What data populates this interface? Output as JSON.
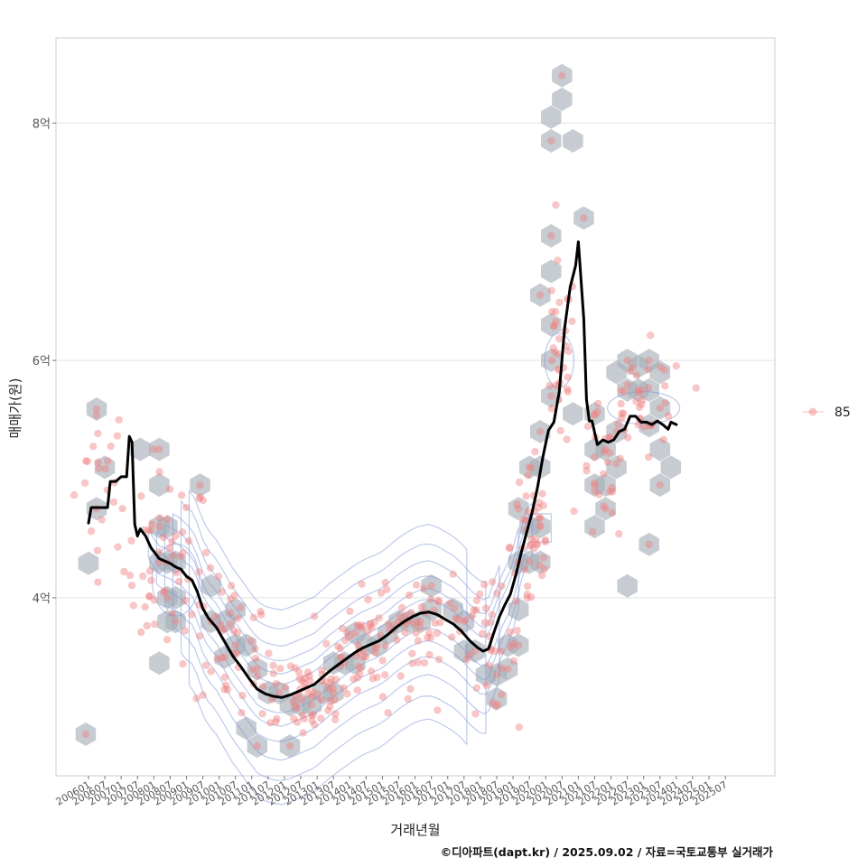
{
  "chart_data": {
    "type": "scatter",
    "xlabel": "거래년월",
    "ylabel": "매매가(원)",
    "caption": "©디아파트(dapt.kr) / 2025.09.02 / 자료=국토교통부 실거래가",
    "ylim": [
      2.5,
      8.8
    ],
    "y_ticks": [
      {
        "value": 4,
        "label": "4억"
      },
      {
        "value": 6,
        "label": "6억"
      },
      {
        "value": 8,
        "label": "8억"
      }
    ],
    "x_start": "2006-01",
    "x_end": "2025-12",
    "x_ticks": [
      "200601",
      "200607",
      "200701",
      "200707",
      "200801",
      "200807",
      "200901",
      "200907",
      "201001",
      "201007",
      "201101",
      "201107",
      "201201",
      "201207",
      "201301",
      "201307",
      "201401",
      "201407",
      "201501",
      "201507",
      "201601",
      "201607",
      "201701",
      "201707",
      "201801",
      "201807",
      "201901",
      "201907",
      "202001",
      "202007",
      "202101",
      "202107",
      "202201",
      "202207",
      "202301",
      "202307",
      "202401",
      "202407",
      "202501",
      "202507"
    ],
    "legend": {
      "label": "85",
      "color": "#f08080",
      "position": "right"
    },
    "grid": true,
    "colors": {
      "points": "#f08080",
      "hex": "#a8b0b8",
      "contour": "#7f96d8",
      "trend": "#000000"
    },
    "trend": [
      [
        "2006-01",
        4.63
      ],
      [
        "2006-02",
        4.76
      ],
      [
        "2006-04",
        4.76
      ],
      [
        "2006-08",
        4.76
      ],
      [
        "2006-09",
        4.98
      ],
      [
        "2006-11",
        4.98
      ],
      [
        "2007-01",
        5.02
      ],
      [
        "2007-03",
        5.02
      ],
      [
        "2007-04",
        5.36
      ],
      [
        "2007-05",
        5.31
      ],
      [
        "2007-06",
        4.62
      ],
      [
        "2007-07",
        4.52
      ],
      [
        "2007-08",
        4.58
      ],
      [
        "2007-10",
        4.52
      ],
      [
        "2007-12",
        4.42
      ],
      [
        "2008-03",
        4.33
      ],
      [
        "2008-05",
        4.31
      ],
      [
        "2008-07",
        4.29
      ],
      [
        "2008-09",
        4.26
      ],
      [
        "2008-11",
        4.24
      ],
      [
        "2009-01",
        4.18
      ],
      [
        "2009-03",
        4.15
      ],
      [
        "2009-05",
        4.05
      ],
      [
        "2009-07",
        3.91
      ],
      [
        "2009-09",
        3.83
      ],
      [
        "2009-12",
        3.75
      ],
      [
        "2010-03",
        3.63
      ],
      [
        "2010-06",
        3.51
      ],
      [
        "2010-09",
        3.42
      ],
      [
        "2010-12",
        3.32
      ],
      [
        "2011-03",
        3.23
      ],
      [
        "2011-06",
        3.19
      ],
      [
        "2011-09",
        3.17
      ],
      [
        "2011-12",
        3.16
      ],
      [
        "2012-03",
        3.18
      ],
      [
        "2012-06",
        3.21
      ],
      [
        "2012-09",
        3.24
      ],
      [
        "2012-12",
        3.27
      ],
      [
        "2013-03",
        3.33
      ],
      [
        "2013-06",
        3.39
      ],
      [
        "2013-09",
        3.44
      ],
      [
        "2013-12",
        3.49
      ],
      [
        "2014-03",
        3.54
      ],
      [
        "2014-06",
        3.58
      ],
      [
        "2014-09",
        3.61
      ],
      [
        "2014-12",
        3.64
      ],
      [
        "2015-03",
        3.69
      ],
      [
        "2015-06",
        3.75
      ],
      [
        "2015-09",
        3.8
      ],
      [
        "2015-12",
        3.84
      ],
      [
        "2016-03",
        3.87
      ],
      [
        "2016-06",
        3.88
      ],
      [
        "2016-09",
        3.86
      ],
      [
        "2016-12",
        3.82
      ],
      [
        "2017-03",
        3.78
      ],
      [
        "2017-06",
        3.72
      ],
      [
        "2017-09",
        3.64
      ],
      [
        "2017-12",
        3.58
      ],
      [
        "2018-02",
        3.55
      ],
      [
        "2018-04",
        3.57
      ],
      [
        "2018-06",
        3.71
      ],
      [
        "2018-08",
        3.84
      ],
      [
        "2018-10",
        3.94
      ],
      [
        "2018-12",
        4.03
      ],
      [
        "2019-02",
        4.19
      ],
      [
        "2019-04",
        4.38
      ],
      [
        "2019-06",
        4.55
      ],
      [
        "2019-08",
        4.72
      ],
      [
        "2019-10",
        4.93
      ],
      [
        "2019-12",
        5.19
      ],
      [
        "2020-02",
        5.41
      ],
      [
        "2020-04",
        5.48
      ],
      [
        "2020-06",
        5.74
      ],
      [
        "2020-08",
        6.28
      ],
      [
        "2020-10",
        6.62
      ],
      [
        "2020-12",
        6.8
      ],
      [
        "2021-01",
        7.0
      ],
      [
        "2021-03",
        6.35
      ],
      [
        "2021-04",
        5.67
      ],
      [
        "2021-05",
        5.49
      ],
      [
        "2021-06",
        5.49
      ],
      [
        "2021-08",
        5.29
      ],
      [
        "2021-10",
        5.33
      ],
      [
        "2021-12",
        5.31
      ],
      [
        "2022-02",
        5.33
      ],
      [
        "2022-04",
        5.4
      ],
      [
        "2022-06",
        5.42
      ],
      [
        "2022-08",
        5.53
      ],
      [
        "2022-10",
        5.53
      ],
      [
        "2022-12",
        5.48
      ],
      [
        "2023-02",
        5.48
      ],
      [
        "2023-04",
        5.46
      ],
      [
        "2023-06",
        5.49
      ],
      [
        "2023-08",
        5.46
      ],
      [
        "2023-10",
        5.42
      ],
      [
        "2023-11",
        5.48
      ],
      [
        "2024-01",
        5.46
      ]
    ],
    "hexbins": [
      [
        "2006-04",
        5.59
      ],
      [
        "2006-01",
        4.29
      ],
      [
        "2006-04",
        4.75
      ],
      [
        "2006-07",
        5.1
      ],
      [
        "2005-12",
        2.85
      ],
      [
        "2007-08",
        5.25
      ],
      [
        "2008-03",
        5.25
      ],
      [
        "2008-03",
        4.95
      ],
      [
        "2008-03",
        4.6
      ],
      [
        "2008-06",
        4.6
      ],
      [
        "2008-06",
        4.3
      ],
      [
        "2008-09",
        4.3
      ],
      [
        "2008-06",
        4.0
      ],
      [
        "2008-09",
        4.0
      ],
      [
        "2008-03",
        4.3
      ],
      [
        "2008-06",
        3.8
      ],
      [
        "2008-09",
        3.8
      ],
      [
        "2008-03",
        3.45
      ],
      [
        "2009-06",
        4.95
      ],
      [
        "2009-10",
        4.1
      ],
      [
        "2009-10",
        3.8
      ],
      [
        "2010-03",
        3.8
      ],
      [
        "2010-03",
        3.5
      ],
      [
        "2010-07",
        3.9
      ],
      [
        "2010-07",
        3.6
      ],
      [
        "2010-11",
        3.6
      ],
      [
        "2011-03",
        3.4
      ],
      [
        "2010-11",
        2.9
      ],
      [
        "2011-03",
        2.75
      ],
      [
        "2011-07",
        3.2
      ],
      [
        "2011-11",
        3.2
      ],
      [
        "2012-03",
        3.1
      ],
      [
        "2012-03",
        2.75
      ],
      [
        "2012-07",
        3.1
      ],
      [
        "2012-11",
        3.1
      ],
      [
        "2013-03",
        3.2
      ],
      [
        "2013-07",
        3.2
      ],
      [
        "2013-07",
        3.45
      ],
      [
        "2013-11",
        3.45
      ],
      [
        "2014-03",
        3.45
      ],
      [
        "2014-03",
        3.7
      ],
      [
        "2014-07",
        3.6
      ],
      [
        "2014-11",
        3.6
      ],
      [
        "2015-03",
        3.7
      ],
      [
        "2015-07",
        3.8
      ],
      [
        "2015-11",
        3.8
      ],
      [
        "2016-03",
        3.8
      ],
      [
        "2016-07",
        3.9
      ],
      [
        "2016-07",
        4.1
      ],
      [
        "2017-03",
        3.9
      ],
      [
        "2017-07",
        3.8
      ],
      [
        "2017-07",
        3.55
      ],
      [
        "2017-11",
        3.55
      ],
      [
        "2018-03",
        3.35
      ],
      [
        "2018-07",
        3.35
      ],
      [
        "2018-07",
        3.15
      ],
      [
        "2018-11",
        3.4
      ],
      [
        "2018-11",
        3.6
      ],
      [
        "2019-03",
        3.6
      ],
      [
        "2019-03",
        3.9
      ],
      [
        "2019-03",
        4.3
      ],
      [
        "2019-07",
        4.3
      ],
      [
        "2019-03",
        4.75
      ],
      [
        "2019-07",
        4.6
      ],
      [
        "2019-11",
        4.6
      ],
      [
        "2019-11",
        4.3
      ],
      [
        "2019-07",
        5.1
      ],
      [
        "2019-11",
        5.1
      ],
      [
        "2019-11",
        5.4
      ],
      [
        "2020-03",
        6.0
      ],
      [
        "2020-03",
        5.7
      ],
      [
        "2020-03",
        6.3
      ],
      [
        "2019-11",
        6.55
      ],
      [
        "2020-03",
        6.75
      ],
      [
        "2020-03",
        7.05
      ],
      [
        "2020-03",
        8.05
      ],
      [
        "2020-03",
        7.85
      ],
      [
        "2020-07",
        8.2
      ],
      [
        "2020-07",
        8.4
      ],
      [
        "2020-11",
        7.85
      ],
      [
        "2021-03",
        7.2
      ],
      [
        "2020-11",
        5.55
      ],
      [
        "2021-07",
        5.55
      ],
      [
        "2021-07",
        5.25
      ],
      [
        "2021-11",
        5.25
      ],
      [
        "2021-11",
        4.95
      ],
      [
        "2021-07",
        4.95
      ],
      [
        "2021-07",
        4.6
      ],
      [
        "2021-11",
        4.75
      ],
      [
        "2022-03",
        5.1
      ],
      [
        "2022-03",
        5.4
      ],
      [
        "2022-03",
        5.9
      ],
      [
        "2022-07",
        6.0
      ],
      [
        "2022-07",
        5.75
      ],
      [
        "2022-11",
        5.75
      ],
      [
        "2022-11",
        5.95
      ],
      [
        "2023-03",
        6.0
      ],
      [
        "2023-03",
        5.75
      ],
      [
        "2023-03",
        5.45
      ],
      [
        "2023-07",
        5.9
      ],
      [
        "2023-07",
        5.6
      ],
      [
        "2023-07",
        5.25
      ],
      [
        "2023-07",
        4.95
      ],
      [
        "2023-11",
        5.1
      ],
      [
        "2023-03",
        4.45
      ],
      [
        "2022-07",
        4.1
      ]
    ],
    "clusters": [
      {
        "x": "2006-06",
        "y": 5.05,
        "sx": 5,
        "sy": 0.35,
        "n": 22
      },
      {
        "x": "2008-06",
        "y": 4.25,
        "sx": 8,
        "sy": 0.4,
        "n": 55
      },
      {
        "x": "2010-06",
        "y": 3.6,
        "sx": 7,
        "sy": 0.3,
        "n": 40
      },
      {
        "x": "2012-07",
        "y": 3.2,
        "sx": 10,
        "sy": 0.2,
        "n": 60
      },
      {
        "x": "2014-06",
        "y": 3.55,
        "sx": 10,
        "sy": 0.25,
        "n": 60
      },
      {
        "x": "2016-06",
        "y": 3.85,
        "sx": 10,
        "sy": 0.15,
        "n": 50
      },
      {
        "x": "2018-04",
        "y": 3.55,
        "sx": 5,
        "sy": 0.25,
        "n": 30
      },
      {
        "x": "2019-08",
        "y": 4.45,
        "sx": 4,
        "sy": 0.4,
        "n": 45
      },
      {
        "x": "2020-06",
        "y": 6.0,
        "sx": 3,
        "sy": 0.4,
        "n": 35
      },
      {
        "x": "2021-10",
        "y": 5.0,
        "sx": 4,
        "sy": 0.3,
        "n": 25
      },
      {
        "x": "2023-01",
        "y": 5.6,
        "sx": 8,
        "sy": 0.25,
        "n": 40
      }
    ],
    "contour_levels": [
      0.12,
      0.22,
      0.34,
      0.48,
      0.64,
      0.82
    ]
  }
}
